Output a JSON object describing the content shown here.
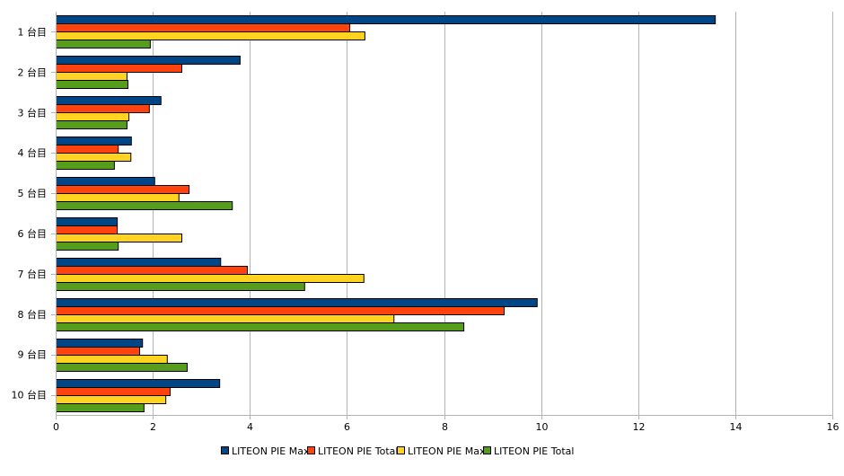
{
  "chart_data": {
    "type": "bar",
    "orientation": "horizontal",
    "title": "",
    "xlabel": "",
    "ylabel": "",
    "xlim": [
      0,
      16
    ],
    "x_ticks": [
      0,
      2,
      4,
      6,
      8,
      10,
      12,
      14,
      16
    ],
    "grid": true,
    "legend_position": "bottom",
    "categories": [
      "1 台目",
      "2 台目",
      "3 台目",
      "4 台目",
      "5 台目",
      "6 台目",
      "7 台目",
      "8 台目",
      "9 台目",
      "10 台目"
    ],
    "series": [
      {
        "name": "LITEON PIE Max",
        "color": "#004586",
        "values": [
          13.58,
          3.79,
          2.16,
          1.55,
          2.03,
          1.26,
          3.39,
          9.91,
          1.78,
          3.37
        ]
      },
      {
        "name": "LITEON PIE Total",
        "color": "#ff420e",
        "values": [
          6.05,
          2.59,
          1.92,
          1.28,
          2.74,
          1.26,
          3.94,
          9.23,
          1.72,
          2.35
        ]
      },
      {
        "name": "LITEON PIE Max",
        "color": "#ffd320",
        "values": [
          6.36,
          1.46,
          1.5,
          1.54,
          2.53,
          2.59,
          6.34,
          6.96,
          2.29,
          2.26
        ]
      },
      {
        "name": "LITEON PIE Total",
        "color": "#579d1c",
        "values": [
          1.94,
          1.48,
          1.46,
          1.2,
          3.63,
          1.28,
          5.12,
          8.4,
          2.7,
          1.81
        ]
      }
    ]
  }
}
